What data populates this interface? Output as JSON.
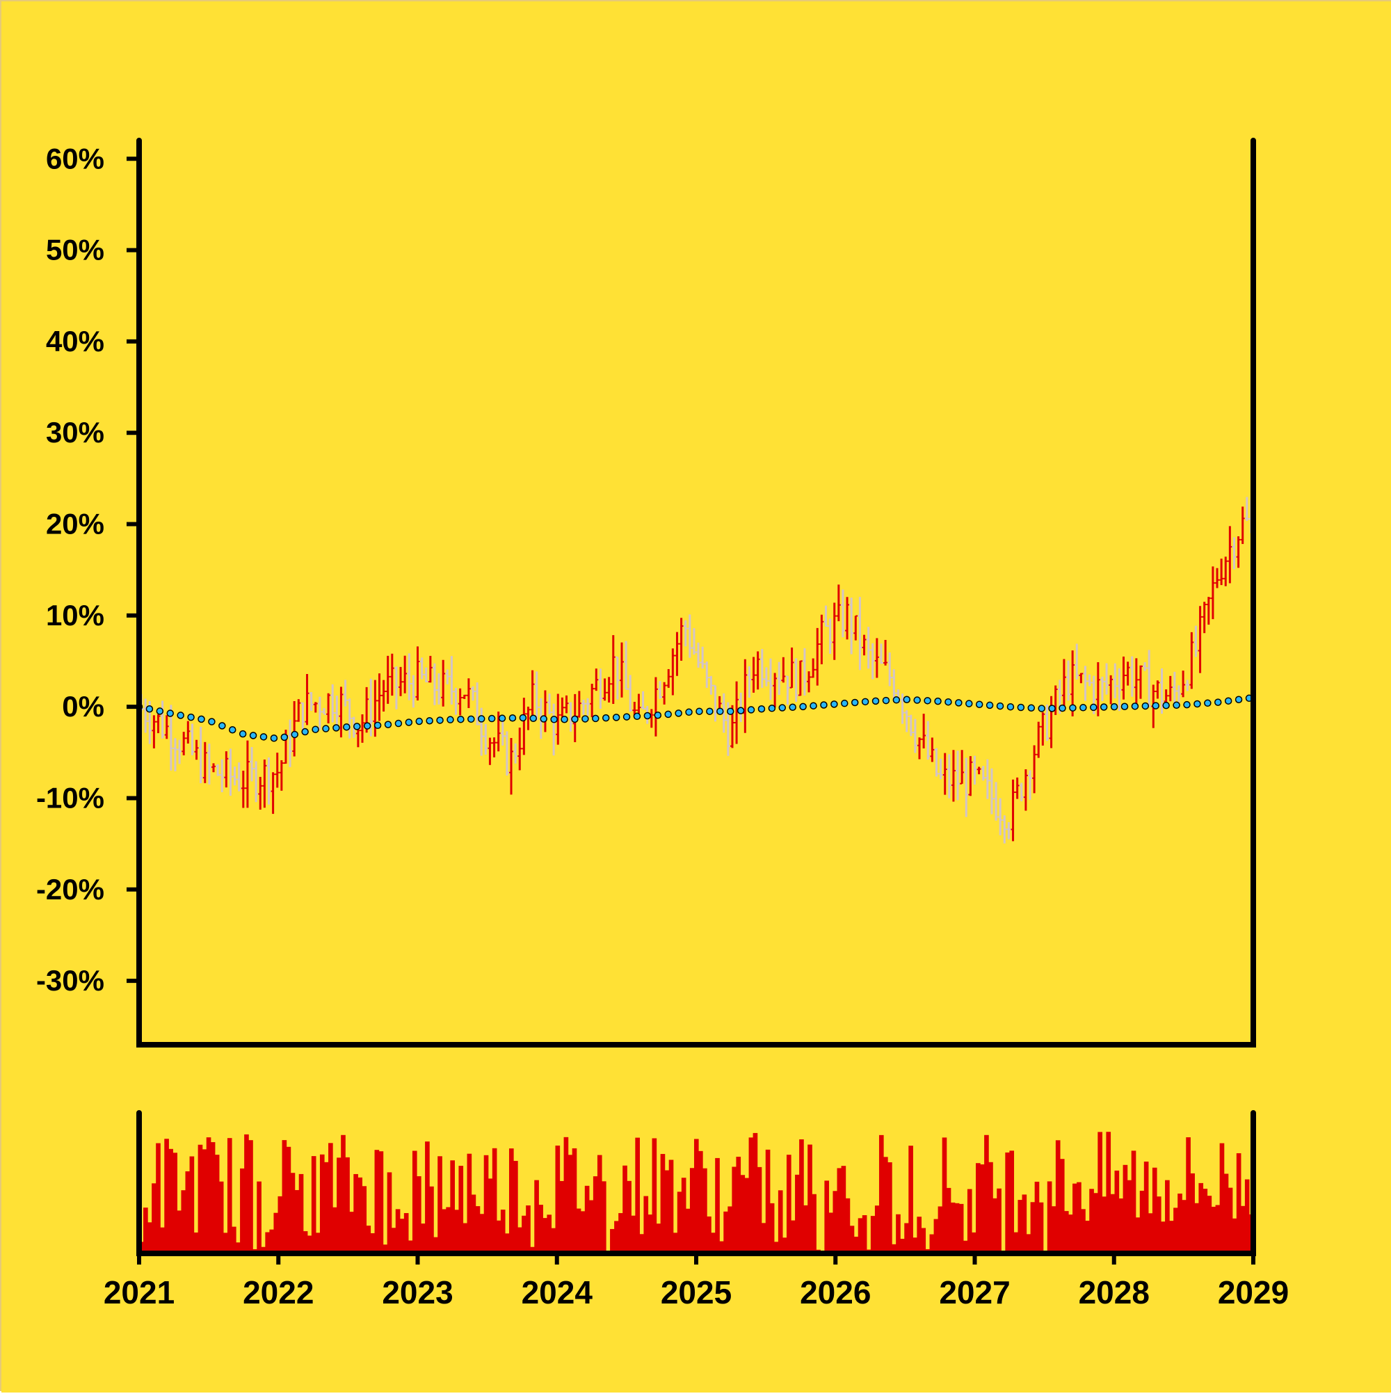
{
  "colors": {
    "background": "#ffe135",
    "up_bar": "#e00000",
    "down_bar": "#d3c4c8",
    "trend_point": "#29b6f6",
    "volume_bar": "#e00000",
    "axis": "#000000"
  },
  "chart_data": {
    "type": "ohlc",
    "y_axis": {
      "ticks": [
        "60%",
        "50%",
        "40%",
        "30%",
        "20%",
        "10%",
        "0%",
        "-10%",
        "-20%",
        "-30%"
      ],
      "ylim": [
        -37,
        62
      ],
      "unit": "percent"
    },
    "x_axis": {
      "ticks": [
        "2021",
        "2022",
        "2023",
        "2024",
        "2025",
        "2026",
        "2027",
        "2028",
        "2029"
      ],
      "xlim": [
        "2021-01",
        "2029-01"
      ]
    },
    "price_anchors": [
      [
        "2021-01",
        0
      ],
      [
        "2021-04",
        -3
      ],
      [
        "2021-07",
        -7
      ],
      [
        "2021-10",
        -8
      ],
      [
        "2022-01",
        -7
      ],
      [
        "2022-03",
        0
      ],
      [
        "2022-06",
        1
      ],
      [
        "2022-08",
        -2
      ],
      [
        "2022-10",
        2
      ],
      [
        "2023-01",
        3
      ],
      [
        "2023-03",
        2
      ],
      [
        "2023-05",
        2
      ],
      [
        "2023-07",
        -3
      ],
      [
        "2023-09",
        -6
      ],
      [
        "2023-11",
        1
      ],
      [
        "2024-01",
        -2
      ],
      [
        "2024-03",
        0
      ],
      [
        "2024-06",
        5
      ],
      [
        "2024-08",
        -2
      ],
      [
        "2024-10",
        3
      ],
      [
        "2024-12",
        9
      ],
      [
        "2025-02",
        2
      ],
      [
        "2025-04",
        -3
      ],
      [
        "2025-06",
        5
      ],
      [
        "2025-08",
        4
      ],
      [
        "2025-10",
        3
      ],
      [
        "2025-12",
        8
      ],
      [
        "2026-02",
        10
      ],
      [
        "2026-04",
        5
      ],
      [
        "2026-06",
        3
      ],
      [
        "2026-08",
        -3
      ],
      [
        "2026-10",
        -8
      ],
      [
        "2027-01",
        -8
      ],
      [
        "2027-04",
        -12
      ],
      [
        "2027-06",
        -5
      ],
      [
        "2027-09",
        3
      ],
      [
        "2027-12",
        2
      ],
      [
        "2028-02",
        4
      ],
      [
        "2028-04",
        2
      ],
      [
        "2028-06",
        1
      ],
      [
        "2028-08",
        6
      ],
      [
        "2028-10",
        15
      ],
      [
        "2028-12",
        20
      ]
    ],
    "trend_anchors": [
      [
        "2021-01",
        0
      ],
      [
        "2021-04",
        -0.8
      ],
      [
        "2021-07",
        -1.5
      ],
      [
        "2021-10",
        -3
      ],
      [
        "2022-01",
        -3.5
      ],
      [
        "2022-04",
        -2.5
      ],
      [
        "2022-07",
        -2.2
      ],
      [
        "2022-10",
        -2
      ],
      [
        "2023-01",
        -1.6
      ],
      [
        "2023-04",
        -1.4
      ],
      [
        "2023-07",
        -1.3
      ],
      [
        "2023-10",
        -1.2
      ],
      [
        "2024-01",
        -1.4
      ],
      [
        "2024-04",
        -1.3
      ],
      [
        "2024-07",
        -1.1
      ],
      [
        "2024-10",
        -0.9
      ],
      [
        "2025-01",
        -0.5
      ],
      [
        "2025-04",
        -0.5
      ],
      [
        "2025-07",
        -0.2
      ],
      [
        "2025-10",
        0
      ],
      [
        "2026-01",
        0.3
      ],
      [
        "2026-04",
        0.6
      ],
      [
        "2026-07",
        0.8
      ],
      [
        "2026-10",
        0.6
      ],
      [
        "2027-01",
        0.3
      ],
      [
        "2027-04",
        0
      ],
      [
        "2027-07",
        -0.2
      ],
      [
        "2027-10",
        -0.1
      ],
      [
        "2028-01",
        0
      ],
      [
        "2028-04",
        0.1
      ],
      [
        "2028-07",
        0.2
      ],
      [
        "2028-10",
        0.5
      ],
      [
        "2029-01",
        1
      ]
    ],
    "volume_range": [
      0,
      100
    ]
  }
}
